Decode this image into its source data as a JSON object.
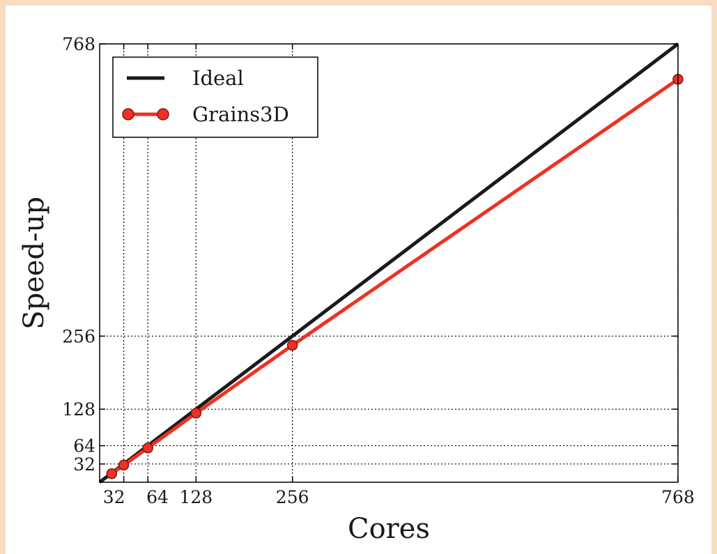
{
  "colors": {
    "frame": "#f8dcc2",
    "ideal": "#1a1a1a",
    "grains": "#ee3124",
    "marker_edge": "#7a1a12",
    "grid": "#000000"
  },
  "chart_data": {
    "type": "line",
    "xlabel": "Cores",
    "ylabel": "Speed-up",
    "xlim": [
      0,
      768
    ],
    "ylim": [
      0,
      768
    ],
    "grid": "dotted lines at ticks",
    "legend_placement": "top-left",
    "xticks": [
      32,
      64,
      128,
      256,
      768
    ],
    "xtick_labels": [
      "32",
      "64",
      "128",
      "256",
      "768"
    ],
    "yticks": [
      32,
      64,
      128,
      256,
      768
    ],
    "ytick_labels": [
      "32",
      "64",
      "128",
      "256",
      "768"
    ],
    "series": [
      {
        "name": "Ideal",
        "style": "line",
        "x": [
          0,
          768
        ],
        "y": [
          0,
          768
        ]
      },
      {
        "name": "Grains3D",
        "style": "line-marker",
        "x": [
          16,
          32,
          64,
          128,
          256,
          768
        ],
        "y": [
          15,
          30,
          60,
          121,
          240,
          706
        ]
      }
    ]
  }
}
